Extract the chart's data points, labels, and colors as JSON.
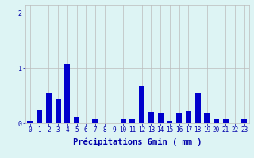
{
  "hours": [
    0,
    1,
    2,
    3,
    4,
    5,
    6,
    7,
    8,
    9,
    10,
    11,
    12,
    13,
    14,
    15,
    16,
    17,
    18,
    19,
    20,
    21,
    22,
    23
  ],
  "values": [
    0.05,
    0.25,
    0.55,
    0.45,
    1.08,
    0.12,
    0.0,
    0.08,
    0.0,
    0.0,
    0.08,
    0.08,
    0.68,
    0.2,
    0.18,
    0.05,
    0.18,
    0.22,
    0.55,
    0.18,
    0.08,
    0.08,
    0.0,
    0.08
  ],
  "bar_color": "#0000cc",
  "bg_color": "#ddf4f4",
  "grid_color": "#bbbbbb",
  "text_color": "#0000aa",
  "xlabel": "Précipitations 6min ( mm )",
  "ylim": [
    0,
    2.15
  ],
  "yticks": [
    0,
    1,
    2
  ],
  "xlabel_fontsize": 7.5,
  "tick_fontsize": 5.5
}
